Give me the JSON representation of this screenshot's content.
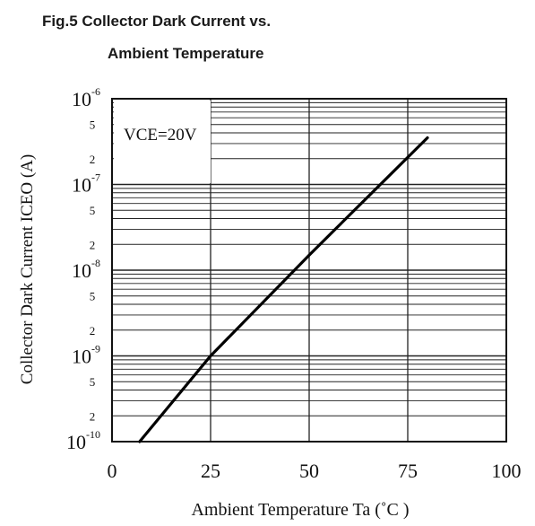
{
  "chart_data": {
    "type": "line",
    "title_line1": "Fig.5 Collector Dark Current vs.",
    "title_line2": "Ambient Temperature",
    "xlabel": "Ambient Temperature Ta (˚C )",
    "ylabel": "Collector Dark Current ICEO (A)",
    "x_ticks": [
      "0",
      "25",
      "50",
      "75",
      "100"
    ],
    "y_major_ticks": [
      {
        "base": "10",
        "exp": "-6"
      },
      {
        "base": "10",
        "exp": "-7"
      },
      {
        "base": "10",
        "exp": "-8"
      },
      {
        "base": "10",
        "exp": "-9"
      },
      {
        "base": "10",
        "exp": "-10"
      }
    ],
    "y_minor_labels": [
      "5",
      "2"
    ],
    "annotation": "VCE=20V",
    "xlim": [
      0,
      100
    ],
    "ylim": [
      1e-10,
      1e-06
    ],
    "y_scale": "log",
    "grid": true,
    "series": [
      {
        "x": [
          7,
          25,
          50,
          80
        ],
        "y": [
          1e-10,
          1e-09,
          1.5e-08,
          3.5e-07
        ]
      }
    ]
  }
}
